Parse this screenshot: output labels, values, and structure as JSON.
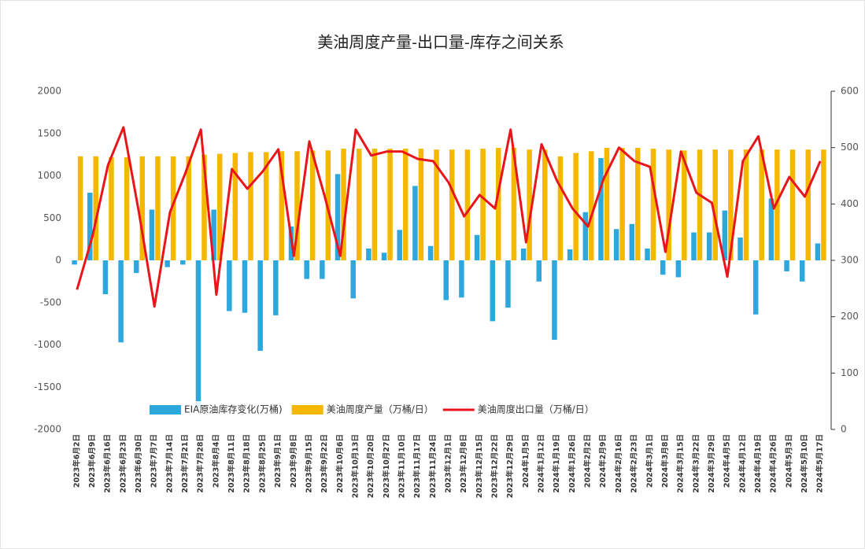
{
  "chart_data": {
    "type": "bar_line",
    "title": "美油周度产量-出口量-库存之间关系",
    "categories": [
      "2023年6月2日",
      "2023年6月9日",
      "2023年6月16日",
      "2023年6月23日",
      "2023年6月30日",
      "2023年7月7日",
      "2023年7月14日",
      "2023年7月21日",
      "2023年7月28日",
      "2023年8月4日",
      "2023年8月11日",
      "2023年8月18日",
      "2023年8月25日",
      "2023年9月1日",
      "2023年9月8日",
      "2023年9月15日",
      "2023年9月22日",
      "2023年10月6日",
      "2023年10月13日",
      "2023年10月20日",
      "2023年10月27日",
      "2023年11月10日",
      "2023年11月17日",
      "2023年11月24日",
      "2023年12月1日",
      "2023年12月8日",
      "2023年12月15日",
      "2023年12月22日",
      "2023年12月29日",
      "2024年1月5日",
      "2024年1月12日",
      "2024年1月19日",
      "2024年1月26日",
      "2024年2月2日",
      "2024年2月9日",
      "2024年2月16日",
      "2024年2月23日",
      "2024年3月1日",
      "2024年3月8日",
      "2024年3月15日",
      "2024年3月22日",
      "2024年3月29日",
      "2024年4月5日",
      "2024年4月12日",
      "2024年4月19日",
      "2024年4月26日",
      "2024年5月3日",
      "2024年5月10日",
      "2024年5月17日"
    ],
    "series": [
      {
        "name": "EIA原油库存变化(万桶)",
        "type": "bar",
        "color": "#2ea8dc",
        "values": [
          -50,
          800,
          -400,
          -970,
          -150,
          600,
          -80,
          -50,
          -1750,
          600,
          -600,
          -620,
          -1070,
          -650,
          400,
          -220,
          -220,
          1020,
          -450,
          140,
          90,
          360,
          880,
          170,
          -470,
          -440,
          300,
          -720,
          -560,
          140,
          -250,
          -940,
          130,
          570,
          1210,
          370,
          430,
          140,
          -170,
          -200,
          330,
          330,
          590,
          270,
          -640,
          730,
          -130,
          -250,
          200
        ]
      },
      {
        "name": "美油周度产量（万桶/日）",
        "type": "bar",
        "color": "#f5b800",
        "values": [
          1230,
          1230,
          1220,
          1220,
          1230,
          1230,
          1230,
          1230,
          1250,
          1260,
          1270,
          1280,
          1280,
          1290,
          1290,
          1300,
          1300,
          1320,
          1320,
          1320,
          1320,
          1320,
          1320,
          1310,
          1310,
          1310,
          1320,
          1330,
          1330,
          1310,
          1310,
          1230,
          1270,
          1290,
          1330,
          1330,
          1330,
          1320,
          1310,
          1300,
          1310,
          1310,
          1310,
          1310,
          1310,
          1310,
          1310,
          1310,
          1310
        ]
      },
      {
        "name": "美油周度出口量（万桶/日）",
        "type": "line",
        "axis": "y2",
        "color": "#e8161b",
        "values": [
          248,
          343,
          469,
          536,
          385,
          218,
          385,
          455,
          532,
          239,
          462,
          427,
          458,
          497,
          308,
          511,
          413,
          308,
          532,
          486,
          493,
          493,
          480,
          476,
          438,
          378,
          416,
          392,
          532,
          332,
          506,
          441,
          392,
          360,
          444,
          500,
          476,
          466,
          315,
          493,
          420,
          402,
          271,
          476,
          520,
          392,
          448,
          413,
          476
        ]
      }
    ],
    "ylim": [
      -2000,
      2000
    ],
    "yticks": [
      2000,
      1500,
      1000,
      500,
      0,
      -500,
      -1000,
      -1500,
      -2000
    ],
    "y2lim": [
      0,
      600
    ],
    "y2ticks": [
      600,
      500,
      400,
      300,
      200,
      100,
      0
    ],
    "legend": "bottom"
  }
}
